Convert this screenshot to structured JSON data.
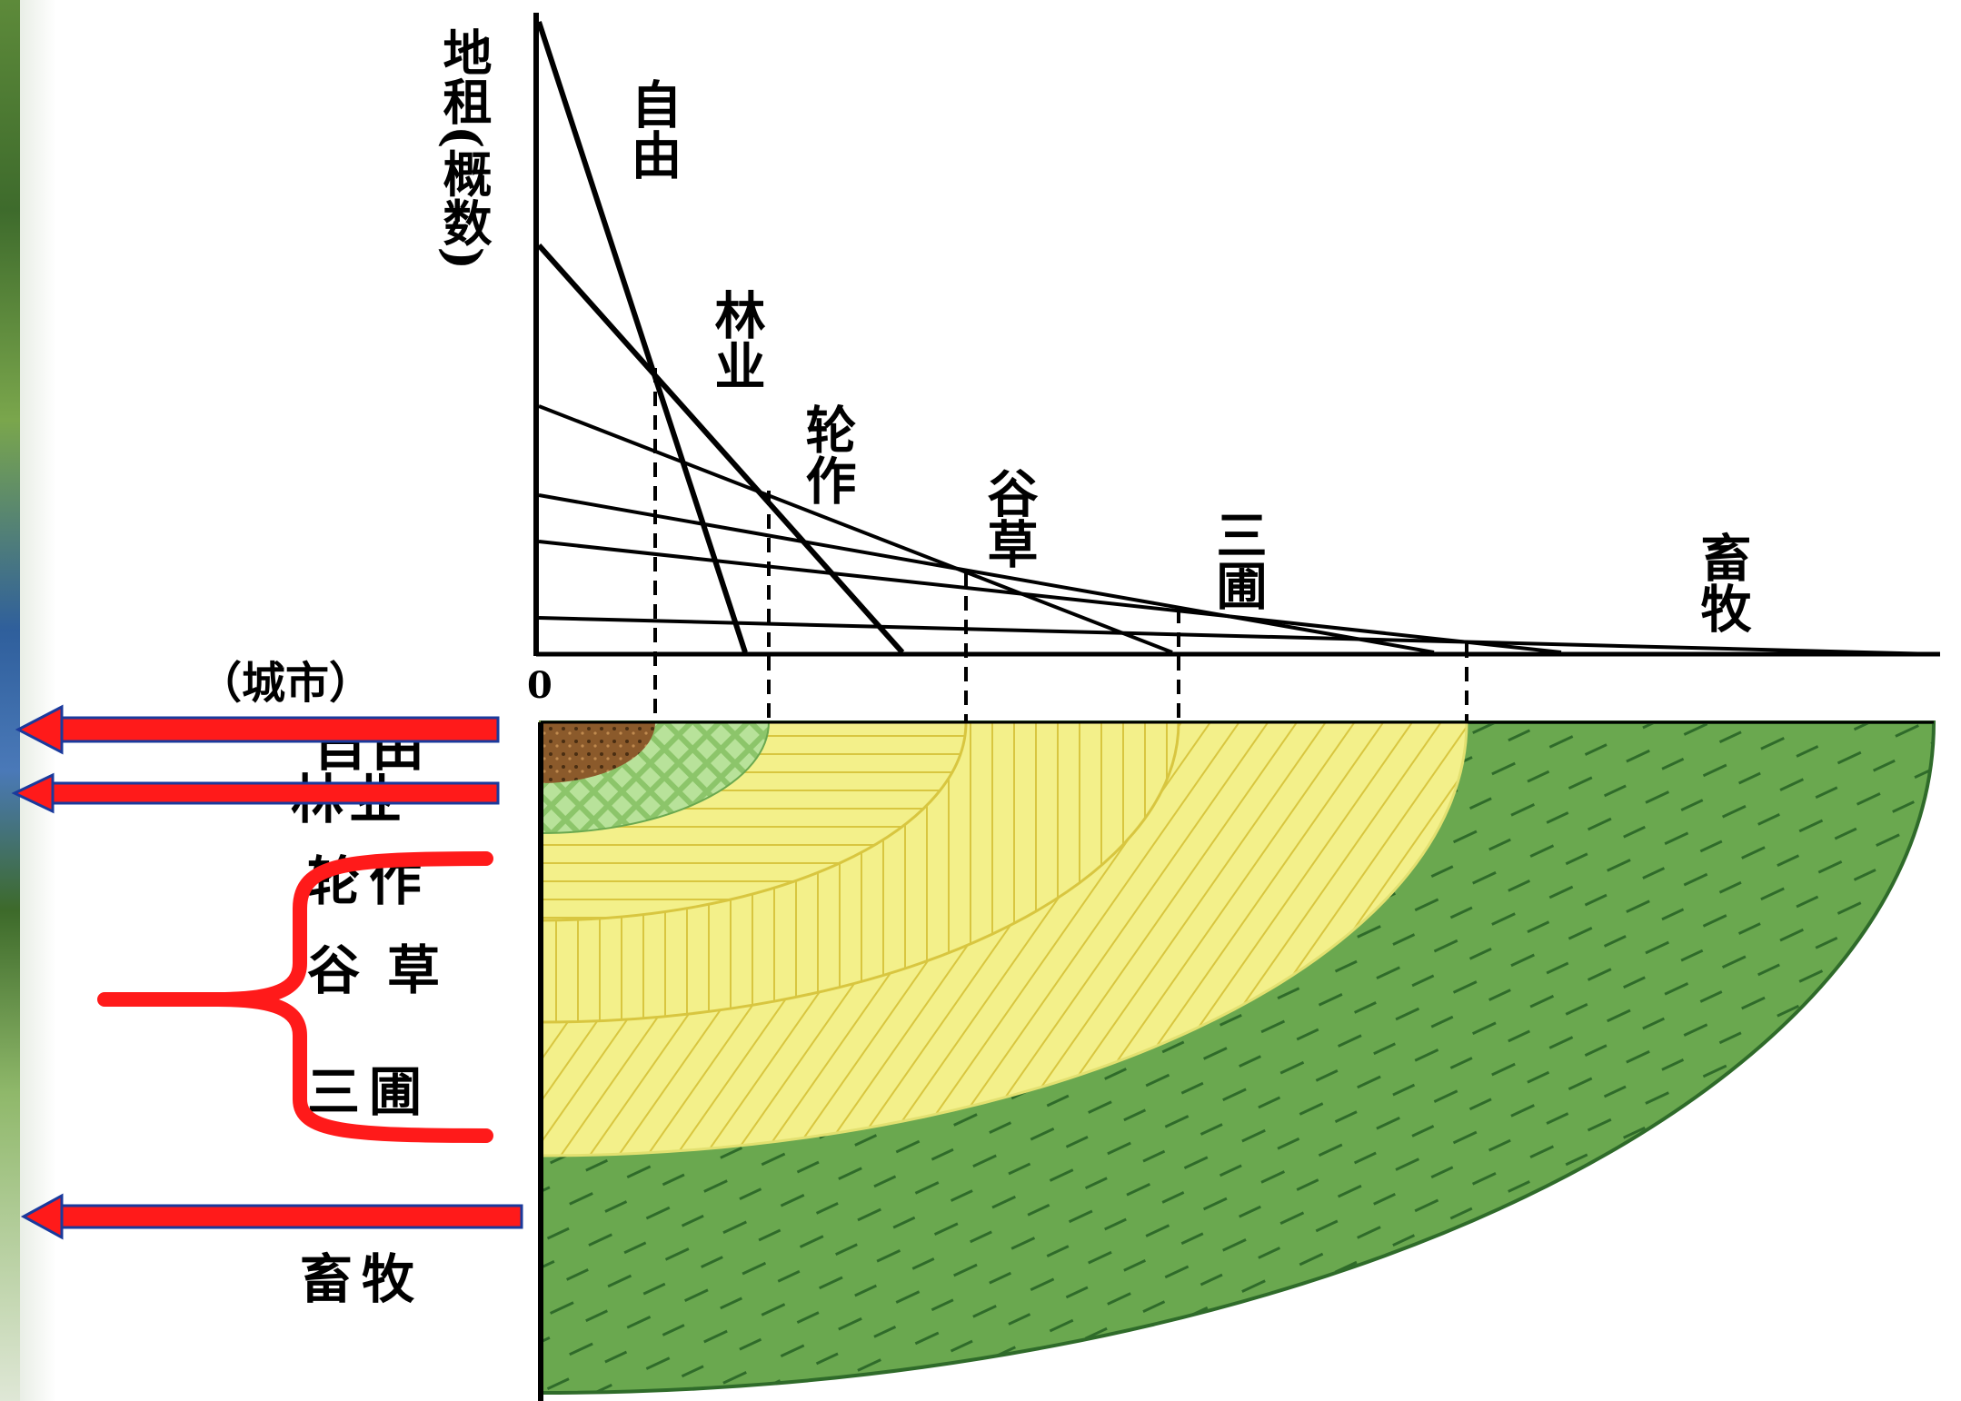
{
  "diagram": {
    "y_axis_label": "地租(概数)",
    "origin_label": "0",
    "city_label": "（城市）",
    "curve_labels": [
      {
        "key": "ziyou",
        "text": "自由"
      },
      {
        "key": "linye",
        "text": "林业"
      },
      {
        "key": "lunzuo",
        "text": "轮作"
      },
      {
        "key": "gucao",
        "text": "谷草"
      },
      {
        "key": "sanpu",
        "text": "三圃"
      },
      {
        "key": "xumu",
        "text": "畜牧"
      }
    ],
    "zone_labels": [
      {
        "key": "ziyou",
        "text": "自由"
      },
      {
        "key": "linye",
        "text": "林业"
      },
      {
        "key": "lunzuo",
        "text": "轮作"
      },
      {
        "key": "gucao",
        "text": "谷草"
      },
      {
        "key": "sanpu",
        "text": "三圃"
      },
      {
        "key": "xumu",
        "text": "畜牧"
      }
    ]
  },
  "colors": {
    "ziyou_zone": "#8b5a2b",
    "linye_zone": "#8cc56a",
    "crop_zone": "#f3f08a",
    "crop_hatch": "#d8c640",
    "xumu_zone": "#6aa84f",
    "xumu_hatch": "#2f6b2a",
    "annotation_red": "#ff1a1a",
    "arrow_outline": "#1a3a9c"
  }
}
